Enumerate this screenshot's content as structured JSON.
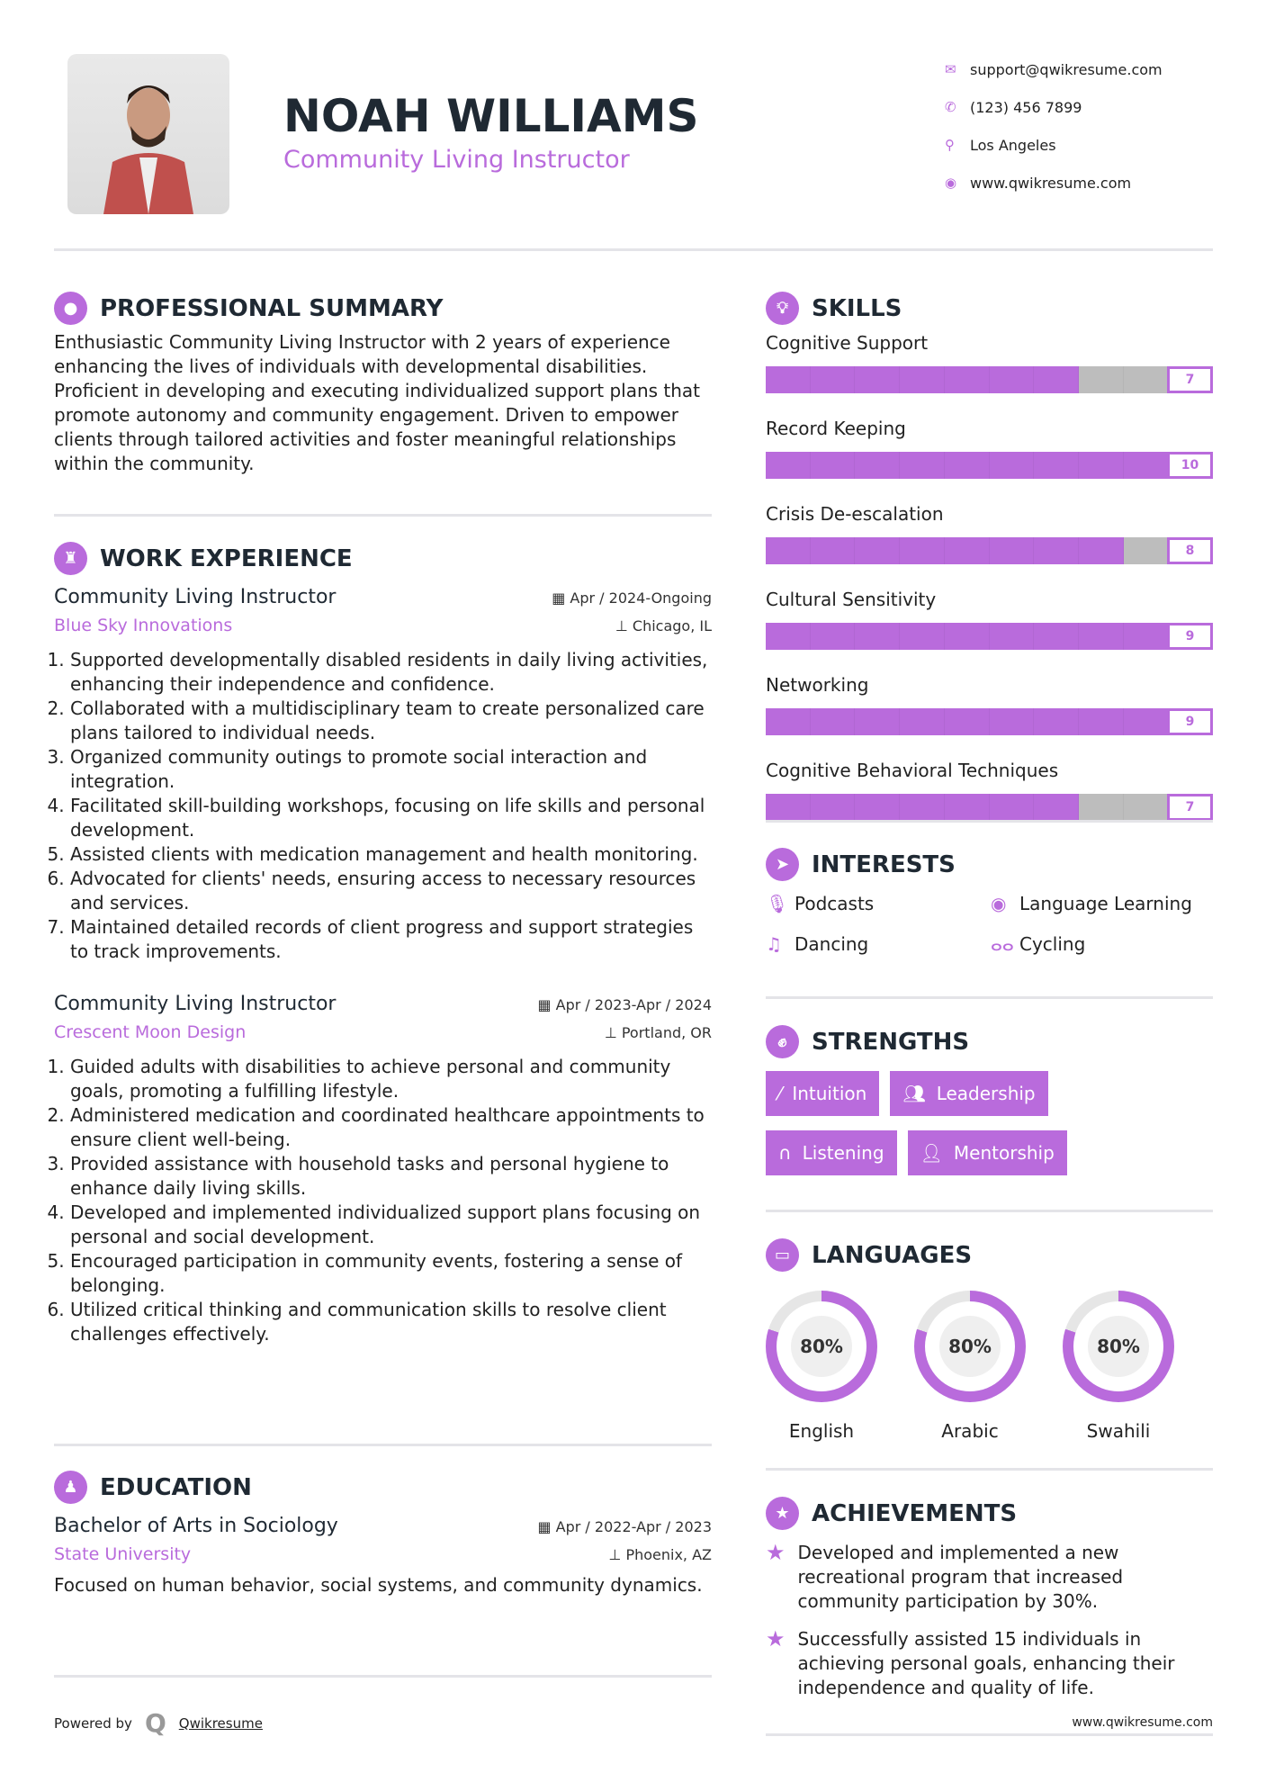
{
  "header": {
    "name": "NOAH WILLIAMS",
    "title": "Community Living Instructor",
    "contacts": [
      {
        "icon": "envelope-icon",
        "text": "support@qwikresume.com"
      },
      {
        "icon": "phone-icon",
        "text": "(123) 456 7899"
      },
      {
        "icon": "map-pin-icon",
        "text": "Los Angeles"
      },
      {
        "icon": "globe-icon",
        "text": "www.qwikresume.com"
      }
    ]
  },
  "summary": {
    "heading": "PROFESSIONAL SUMMARY",
    "text": "Enthusiastic Community Living Instructor with 2 years of experience enhancing the lives of individuals with developmental disabilities. Proficient in developing and executing individualized support plans that promote autonomy and community engagement. Driven to empower clients through tailored activities and foster meaningful relationships within the community."
  },
  "work": {
    "heading": "WORK EXPERIENCE",
    "jobs": [
      {
        "title": "Community Living Instructor",
        "date": "Apr / 2024-Ongoing",
        "company": "Blue Sky Innovations",
        "location": "Chicago, IL",
        "bullets": [
          "Supported developmentally disabled residents in daily living activities, enhancing their independence and confidence.",
          "Collaborated with a multidisciplinary team to create personalized care plans tailored to individual needs.",
          "Organized community outings to promote social interaction and integration.",
          "Facilitated skill-building workshops, focusing on life skills and personal development.",
          "Assisted clients with medication management and health monitoring.",
          "Advocated for clients' needs, ensuring access to necessary resources and services.",
          "Maintained detailed records of client progress and support strategies to track improvements."
        ]
      },
      {
        "title": "Community Living Instructor",
        "date": "Apr / 2023-Apr / 2024",
        "company": "Crescent Moon Design",
        "location": "Portland, OR",
        "bullets": [
          "Guided adults with disabilities to achieve personal and community goals, promoting a fulfilling lifestyle.",
          "Administered medication and coordinated healthcare appointments to ensure client well-being.",
          "Provided assistance with household tasks and personal hygiene to enhance daily living skills.",
          "Developed and implemented individualized support plans focusing on personal and social development.",
          "Encouraged participation in community events, fostering a sense of belonging.",
          "Utilized critical thinking and communication skills to resolve client challenges effectively."
        ]
      }
    ]
  },
  "education": {
    "heading": "EDUCATION",
    "degree": "Bachelor of Arts in Sociology",
    "date": "Apr / 2022-Apr / 2023",
    "school": "State University",
    "location": "Phoenix, AZ",
    "text": "Focused on human behavior, social systems, and community dynamics."
  },
  "footer": {
    "powered_by": "Powered by",
    "brand": "Qwikresume",
    "url": "www.qwikresume.com"
  },
  "skills": {
    "heading": "SKILLS",
    "max": 10,
    "items": [
      {
        "label": "Cognitive Support",
        "value": 7
      },
      {
        "label": "Record Keeping",
        "value": 10
      },
      {
        "label": "Crisis De-escalation",
        "value": 8
      },
      {
        "label": "Cultural Sensitivity",
        "value": 9
      },
      {
        "label": "Networking",
        "value": 9
      },
      {
        "label": "Cognitive Behavioral Techniques",
        "value": 7
      }
    ]
  },
  "interests": {
    "heading": "INTERESTS",
    "items": [
      {
        "icon": "microphone-icon",
        "label": "Podcasts"
      },
      {
        "icon": "globe-icon",
        "label": "Language Learning"
      },
      {
        "icon": "music-icon",
        "label": "Dancing"
      },
      {
        "icon": "bicycle-icon",
        "label": "Cycling"
      }
    ]
  },
  "strengths": {
    "heading": "STRENGTHS",
    "items": [
      {
        "icon": "magic-wand-icon",
        "label": "Intuition"
      },
      {
        "icon": "users-icon",
        "label": "Leadership"
      },
      {
        "icon": "headphones-icon",
        "label": "Listening"
      },
      {
        "icon": "user-plus-icon",
        "label": "Mentorship"
      }
    ]
  },
  "languages": {
    "heading": "LANGUAGES",
    "items": [
      {
        "label": "English",
        "percent": 80,
        "text": "80%"
      },
      {
        "label": "Arabic",
        "percent": 80,
        "text": "80%"
      },
      {
        "label": "Swahili",
        "percent": 80,
        "text": "80%"
      }
    ]
  },
  "achievements": {
    "heading": "ACHIEVEMENTS",
    "items": [
      "Developed and implemented a new recreational program that increased community participation by 30%.",
      "Successfully assisted 15 individuals in achieving personal goals, enhancing their independence and quality of life."
    ]
  },
  "colors": {
    "accent": "#b96bdc",
    "text": "#1f2933",
    "bar_empty": "#bdbdbd"
  }
}
